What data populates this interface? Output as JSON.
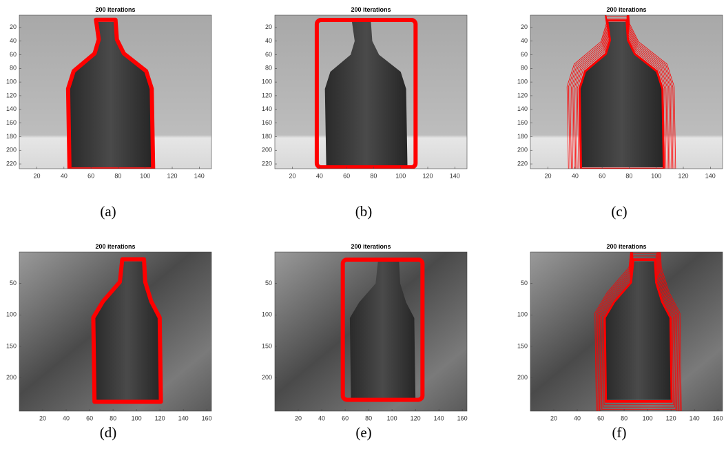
{
  "panels": [
    {
      "title": "200 iterations",
      "caption": "(a)",
      "xlim": [
        7,
        149
      ],
      "ylim": [
        2,
        227
      ],
      "xticks": [
        20,
        40,
        60,
        80,
        100,
        120,
        140
      ],
      "yticks": [
        20,
        40,
        60,
        80,
        100,
        120,
        140,
        160,
        180,
        200,
        220
      ]
    },
    {
      "title": "200 iterations",
      "caption": "(b)",
      "xlim": [
        7,
        149
      ],
      "ylim": [
        2,
        227
      ],
      "xticks": [
        20,
        40,
        60,
        80,
        100,
        120,
        140
      ],
      "yticks": [
        20,
        40,
        60,
        80,
        100,
        120,
        140,
        160,
        180,
        200,
        220
      ]
    },
    {
      "title": "200 iterations",
      "caption": "(c)",
      "xlim": [
        7,
        149
      ],
      "ylim": [
        2,
        227
      ],
      "xticks": [
        20,
        40,
        60,
        80,
        100,
        120,
        140
      ],
      "yticks": [
        20,
        40,
        60,
        80,
        100,
        120,
        140,
        160,
        180,
        200,
        220
      ]
    },
    {
      "title": "200 iterations",
      "caption": "(d)",
      "xlim": [
        0,
        164
      ],
      "ylim": [
        0,
        253
      ],
      "xticks": [
        20,
        40,
        60,
        80,
        100,
        120,
        140,
        160
      ],
      "yticks": [
        50,
        100,
        150,
        200
      ]
    },
    {
      "title": "200 iterations",
      "caption": "(e)",
      "xlim": [
        0,
        164
      ],
      "ylim": [
        0,
        253
      ],
      "xticks": [
        20,
        40,
        60,
        80,
        100,
        120,
        140,
        160
      ],
      "yticks": [
        50,
        100,
        150,
        200
      ]
    },
    {
      "title": "200 iterations",
      "caption": "(f)",
      "xlim": [
        0,
        164
      ],
      "ylim": [
        0,
        253
      ],
      "xticks": [
        20,
        40,
        60,
        80,
        100,
        120,
        140,
        160
      ],
      "yticks": [
        50,
        100,
        150,
        200
      ]
    }
  ]
}
